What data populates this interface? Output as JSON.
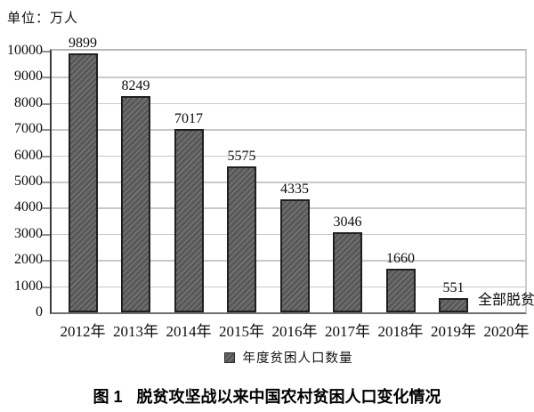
{
  "unit_label": "单位：万人",
  "chart_data": {
    "type": "bar",
    "title": "脱贫攻坚战以来中国农村贫困人口变化情况",
    "unit": "万人",
    "categories": [
      "2012年",
      "2013年",
      "2014年",
      "2015年",
      "2016年",
      "2017年",
      "2018年",
      "2019年",
      "2020年"
    ],
    "values": [
      9899,
      8249,
      7017,
      5575,
      4335,
      3046,
      1660,
      551,
      null
    ],
    "bar_value_labels": [
      "9899",
      "8249",
      "7017",
      "5575",
      "4335",
      "3046",
      "1660",
      "551"
    ],
    "annotations": [
      {
        "category": "2020年",
        "text": "全部脱贫"
      }
    ],
    "legend": [
      {
        "label": "年度贫困人口数量",
        "swatch": "hatched-dark-gray"
      }
    ],
    "legend_position": "bottom",
    "ylim": [
      0,
      10000
    ],
    "yticks": [
      0,
      1000,
      2000,
      3000,
      4000,
      5000,
      6000,
      7000,
      8000,
      9000,
      10000
    ],
    "grid": true,
    "colors": {
      "bar_fill": "#585858",
      "bar_hatch_line": "#757575",
      "bar_border": "#1f1f1f",
      "gridline": "#c9c9c9",
      "axis": "#3a3a3a"
    },
    "hatch_pattern": "diagonal-forward"
  },
  "caption": {
    "figure_no": "图 1",
    "title": "脱贫攻坚战以来中国农村贫困人口变化情况"
  }
}
